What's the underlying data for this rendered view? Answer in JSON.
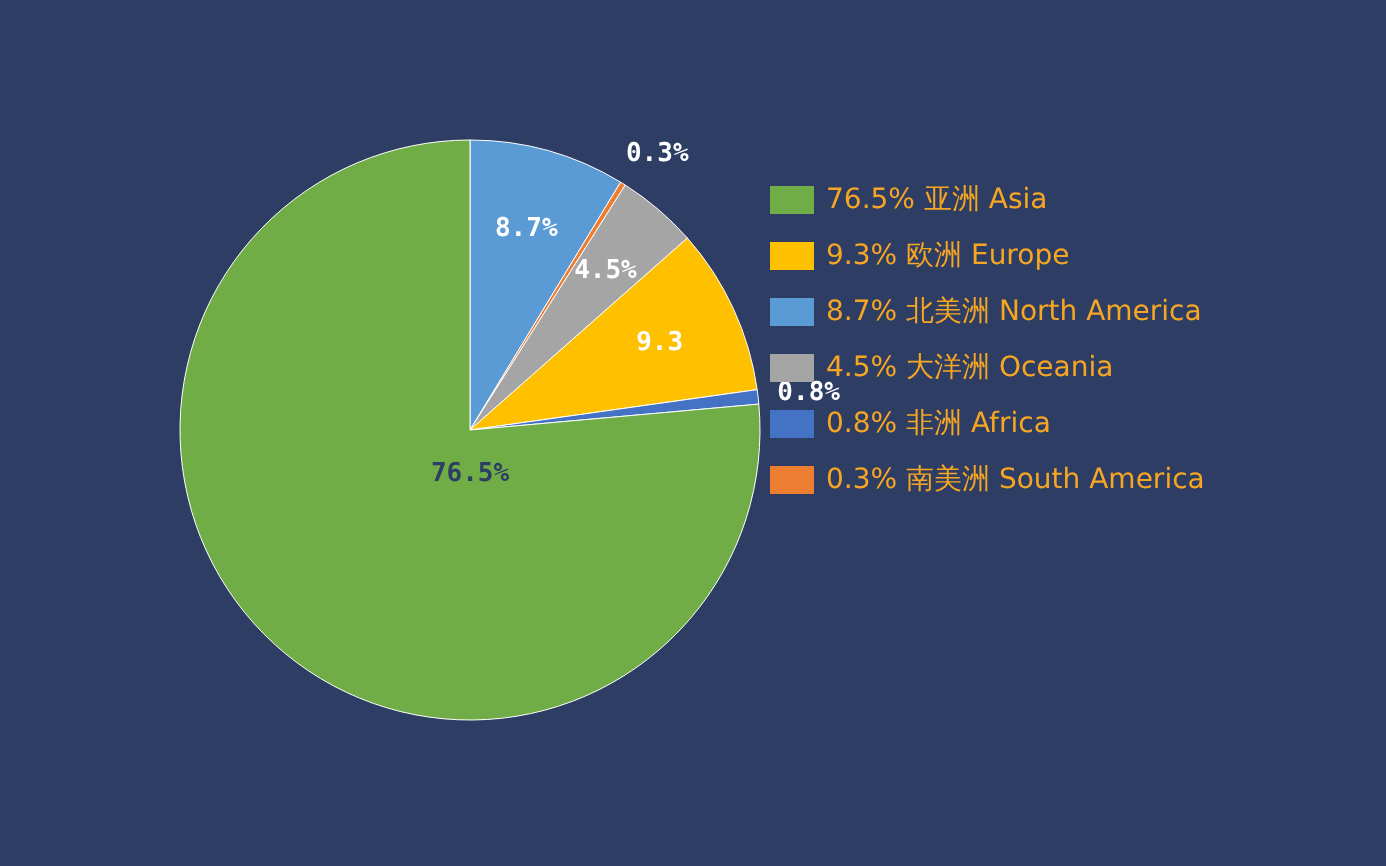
{
  "chart_data": {
    "type": "pie",
    "categories": [
      "8.7% 北美洲 North America",
      "0.3% 南美洲 South America",
      "4.5% 大洋洲 Oceania",
      "9.3% 欧洲 Europe",
      "0.8% 非洲 Africa",
      "76.5% 亚洲 Asia"
    ],
    "values": [
      8.7,
      0.3,
      4.5,
      9.3,
      0.8,
      76.5
    ],
    "colors": [
      "#5b9bd5",
      "#ed7d31",
      "#a5a5a5",
      "#ffc000",
      "#4472c4",
      "#70ad47"
    ],
    "value_labels": [
      "8.7%",
      "0.3%",
      "4.5%",
      "9.3",
      "0.8%",
      "76.5%"
    ],
    "legend": "right"
  }
}
